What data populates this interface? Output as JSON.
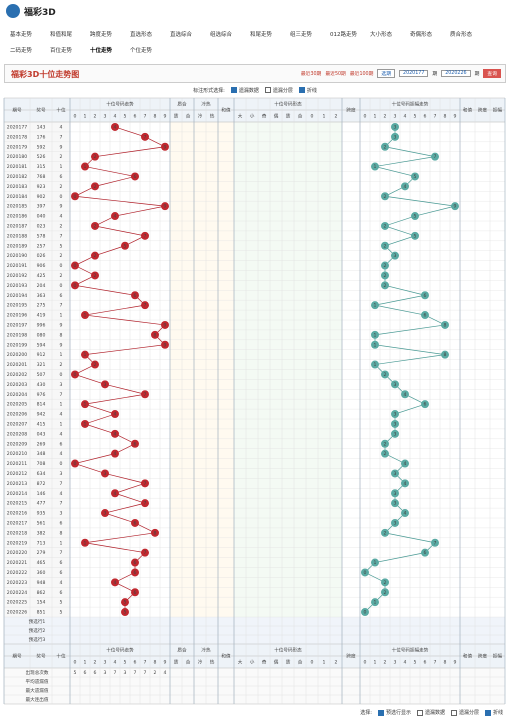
{
  "header": {
    "logo": "福彩3D"
  },
  "nav": [
    "基本走势",
    "和值和尾",
    "跨度走势",
    "直选形态",
    "直选综合",
    "组选综合",
    "和尾走势",
    "组三走势",
    "012路走势",
    "大小形态",
    "奇偶形态",
    "质合形态",
    "二码走势",
    "百位走势",
    "十位走势",
    "个位走势"
  ],
  "title": "福彩3D十位走势图",
  "filters": {
    "recent": [
      "最近30期",
      "最近50期",
      "最近100期"
    ],
    "select": "选期",
    "from": "2020177",
    "from_unit": "期",
    "to": "2020226",
    "to_unit": "期",
    "button": "查询"
  },
  "controls": {
    "label": "标注形式选择:",
    "options": [
      "遗漏数据",
      "遗漏分层",
      "折线"
    ]
  },
  "table": {
    "issue": "期号",
    "prize": "奖号",
    "tens": "十位",
    "trend": "十位号码走势",
    "digits": [
      "0",
      "1",
      "2",
      "3",
      "4",
      "5",
      "6",
      "7",
      "8",
      "9"
    ],
    "zh": "质合",
    "zh_sub": [
      "质",
      "合"
    ],
    "lr": "冷热",
    "lr_sub": [
      "冷",
      "热"
    ],
    "sum": "和值",
    "form": "十位号码形态",
    "form_sub": [
      "大",
      "小",
      "奇",
      "偶",
      "质",
      "合",
      "0",
      "1",
      "2"
    ],
    "span": "跨度",
    "amp": "十位号码振幅走势",
    "right": [
      "和值",
      "跨度",
      "振幅"
    ],
    "rows": [
      {
        "issue": "2020177",
        "prize": "143",
        "tens": 4,
        "amp": 3
      },
      {
        "issue": "2020178",
        "prize": "176",
        "tens": 7,
        "amp": 3
      },
      {
        "issue": "2020179",
        "prize": "592",
        "tens": 9,
        "amp": 2
      },
      {
        "issue": "2020180",
        "prize": "526",
        "tens": 2,
        "amp": 7
      },
      {
        "issue": "2020181",
        "prize": "315",
        "tens": 1,
        "amp": 1
      },
      {
        "issue": "2020182",
        "prize": "768",
        "tens": 6,
        "amp": 5
      },
      {
        "issue": "2020183",
        "prize": "923",
        "tens": 2,
        "amp": 4
      },
      {
        "issue": "2020184",
        "prize": "902",
        "tens": 0,
        "amp": 2
      },
      {
        "issue": "2020185",
        "prize": "397",
        "tens": 9,
        "amp": 9
      },
      {
        "issue": "2020186",
        "prize": "040",
        "tens": 4,
        "amp": 5
      },
      {
        "issue": "2020187",
        "prize": "023",
        "tens": 2,
        "amp": 2
      },
      {
        "issue": "2020188",
        "prize": "578",
        "tens": 7,
        "amp": 5
      },
      {
        "issue": "2020189",
        "prize": "257",
        "tens": 5,
        "amp": 2
      },
      {
        "issue": "2020190",
        "prize": "026",
        "tens": 2,
        "amp": 3
      },
      {
        "issue": "2020191",
        "prize": "906",
        "tens": 0,
        "amp": 2
      },
      {
        "issue": "2020192",
        "prize": "425",
        "tens": 2,
        "amp": 2
      },
      {
        "issue": "2020193",
        "prize": "204",
        "tens": 0,
        "amp": 2
      },
      {
        "issue": "2020194",
        "prize": "363",
        "tens": 6,
        "amp": 6
      },
      {
        "issue": "2020195",
        "prize": "275",
        "tens": 7,
        "amp": 1
      },
      {
        "issue": "2020196",
        "prize": "419",
        "tens": 1,
        "amp": 6
      },
      {
        "issue": "2020197",
        "prize": "996",
        "tens": 9,
        "amp": 8
      },
      {
        "issue": "2020198",
        "prize": "080",
        "tens": 8,
        "amp": 1
      },
      {
        "issue": "2020199",
        "prize": "594",
        "tens": 9,
        "amp": 1
      },
      {
        "issue": "2020200",
        "prize": "912",
        "tens": 1,
        "amp": 8
      },
      {
        "issue": "2020201",
        "prize": "321",
        "tens": 2,
        "amp": 1
      },
      {
        "issue": "2020202",
        "prize": "507",
        "tens": 0,
        "amp": 2
      },
      {
        "issue": "2020203",
        "prize": "430",
        "tens": 3,
        "amp": 3
      },
      {
        "issue": "2020204",
        "prize": "976",
        "tens": 7,
        "amp": 4
      },
      {
        "issue": "2020205",
        "prize": "814",
        "tens": 1,
        "amp": 6
      },
      {
        "issue": "2020206",
        "prize": "942",
        "tens": 4,
        "amp": 3
      },
      {
        "issue": "2020207",
        "prize": "415",
        "tens": 1,
        "amp": 3
      },
      {
        "issue": "2020208",
        "prize": "043",
        "tens": 4,
        "amp": 3
      },
      {
        "issue": "2020209",
        "prize": "269",
        "tens": 6,
        "amp": 2
      },
      {
        "issue": "2020210",
        "prize": "348",
        "tens": 4,
        "amp": 2
      },
      {
        "issue": "2020211",
        "prize": "708",
        "tens": 0,
        "amp": 4
      },
      {
        "issue": "2020212",
        "prize": "634",
        "tens": 3,
        "amp": 3
      },
      {
        "issue": "2020213",
        "prize": "872",
        "tens": 7,
        "amp": 4
      },
      {
        "issue": "2020214",
        "prize": "146",
        "tens": 4,
        "amp": 3
      },
      {
        "issue": "2020215",
        "prize": "477",
        "tens": 7,
        "amp": 3
      },
      {
        "issue": "2020216",
        "prize": "935",
        "tens": 3,
        "amp": 4
      },
      {
        "issue": "2020217",
        "prize": "561",
        "tens": 6,
        "amp": 3
      },
      {
        "issue": "2020218",
        "prize": "382",
        "tens": 8,
        "amp": 2
      },
      {
        "issue": "2020219",
        "prize": "713",
        "tens": 1,
        "amp": 7
      },
      {
        "issue": "2020220",
        "prize": "279",
        "tens": 7,
        "amp": 6
      },
      {
        "issue": "2020221",
        "prize": "465",
        "tens": 6,
        "amp": 1
      },
      {
        "issue": "2020222",
        "prize": "360",
        "tens": 6,
        "amp": 0
      },
      {
        "issue": "2020223",
        "prize": "948",
        "tens": 4,
        "amp": 2
      },
      {
        "issue": "2020224",
        "prize": "862",
        "tens": 6,
        "amp": 2
      },
      {
        "issue": "2020225",
        "prize": "154",
        "tens": 5,
        "amp": 1
      },
      {
        "issue": "2020226",
        "prize": "851",
        "tens": 5,
        "amp": 0
      }
    ],
    "preselect": [
      "预选行1",
      "预选行2",
      "预选行3"
    ],
    "stats": {
      "labels": [
        "出现总次数",
        "平均遗漏值",
        "最大遗漏值",
        "最大连出值"
      ],
      "counts": [
        5,
        6,
        6,
        3,
        7,
        3,
        7,
        7,
        2,
        4
      ]
    }
  },
  "footer": {
    "label": "选择:",
    "options": [
      "预选行显示",
      "遗漏数据",
      "遗漏分层",
      "折线"
    ]
  }
}
